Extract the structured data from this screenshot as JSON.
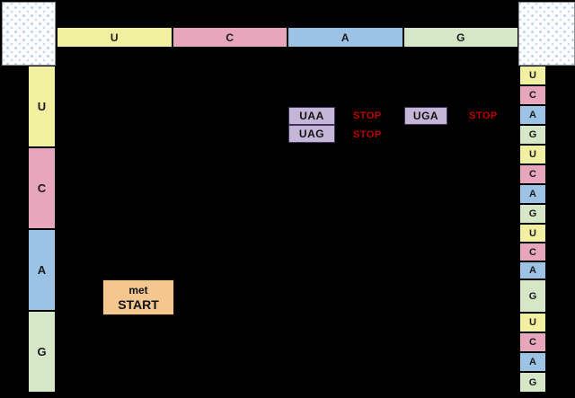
{
  "table": {
    "top_header": {
      "cells": [
        {
          "label": "U"
        },
        {
          "label": "C"
        },
        {
          "label": "A"
        },
        {
          "label": "G"
        }
      ]
    },
    "left_header": {
      "cells": [
        {
          "label": "U"
        },
        {
          "label": "C"
        },
        {
          "label": "A"
        },
        {
          "label": "G"
        }
      ]
    },
    "right_header": {
      "cells": [
        {
          "label": "U"
        },
        {
          "label": "C"
        },
        {
          "label": "A"
        },
        {
          "label": "G"
        },
        {
          "label": "U"
        },
        {
          "label": "C"
        },
        {
          "label": "A"
        },
        {
          "label": "G"
        },
        {
          "label": "U"
        },
        {
          "label": "C"
        },
        {
          "label": "A"
        },
        {
          "label": "G"
        },
        {
          "label": "U"
        },
        {
          "label": "C"
        },
        {
          "label": "A"
        },
        {
          "label": "G"
        }
      ]
    }
  },
  "codons": {
    "stop_codons": [
      {
        "codon": "UAA",
        "label": "STOP"
      },
      {
        "codon": "UAG",
        "label": "STOP"
      },
      {
        "codon": "UGA",
        "label": "STOP"
      }
    ],
    "start_codon": {
      "product": "met",
      "label": "START"
    }
  },
  "colors": {
    "background": "#000000",
    "base_u": "#F1EFA0",
    "base_c": "#E7A6BB",
    "base_a": "#9CC3E6",
    "base_g": "#D6E7C8",
    "stop_box_fill": "#C5B6D8",
    "stop_text": "#C00000",
    "start_box_fill": "#F4C791"
  }
}
